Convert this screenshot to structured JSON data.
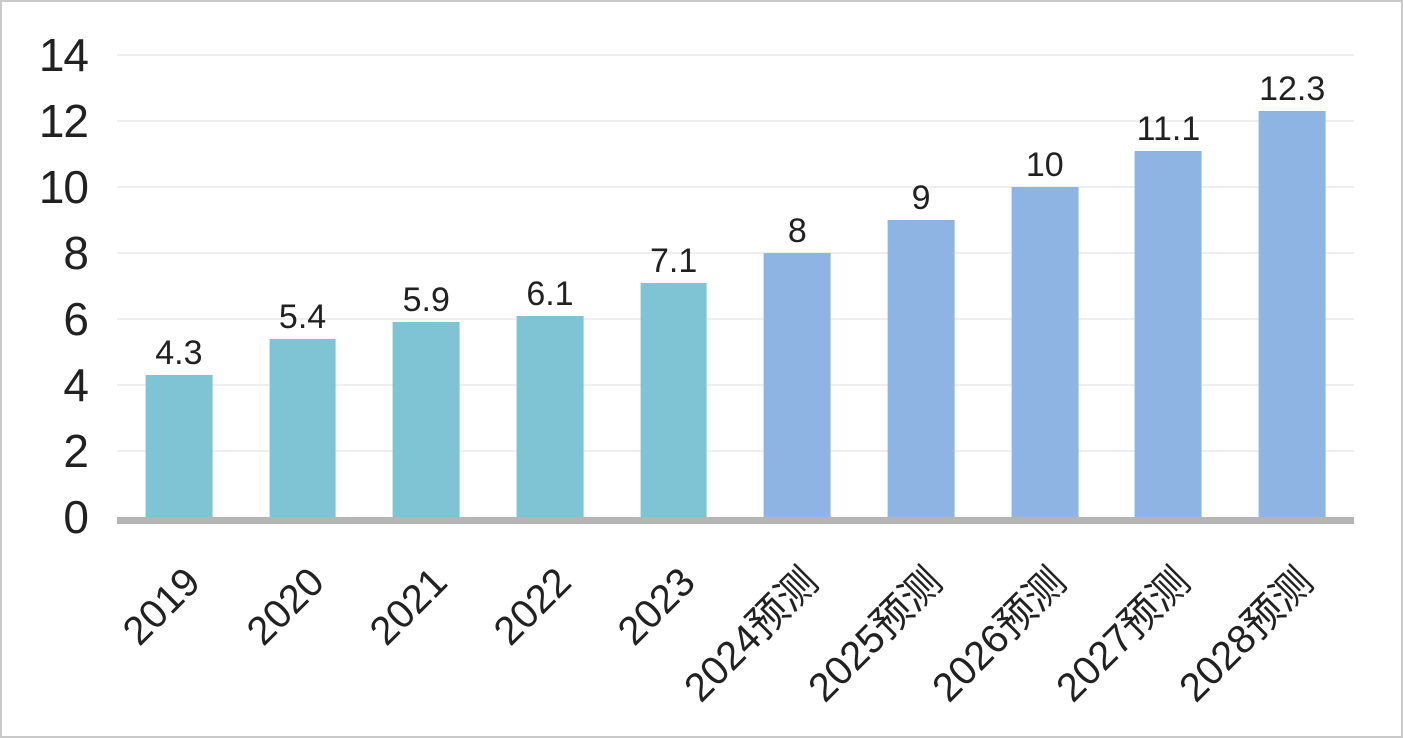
{
  "chart_data": {
    "type": "bar",
    "title": "",
    "xlabel": "",
    "ylabel": "",
    "categories": [
      "2019",
      "2020",
      "2021",
      "2022",
      "2023",
      "2024预测",
      "2025预测",
      "2026预测",
      "2027预测",
      "2028预测"
    ],
    "values": [
      4.3,
      5.4,
      5.9,
      6.1,
      7.1,
      8,
      9,
      10,
      11.1,
      12.3
    ],
    "data_labels": [
      "4.3",
      "5.4",
      "5.9",
      "6.1",
      "7.1",
      "8",
      "9",
      "10",
      "11.1",
      "12.3"
    ],
    "bar_styles": [
      "historical",
      "historical",
      "historical",
      "historical",
      "historical",
      "forecast",
      "forecast",
      "forecast",
      "forecast",
      "forecast"
    ],
    "ylim": [
      0,
      14
    ],
    "yticks": [
      "0",
      "2",
      "4",
      "6",
      "8",
      "10",
      "12",
      "14"
    ],
    "grid": true,
    "legend": "none",
    "colors": {
      "historical_bar": "#7EC4D4",
      "forecast_bar": "#8DB4E2",
      "gridline": "#EFEFEF",
      "axis_line": "#B5B5B5",
      "text": "#212121",
      "background": "#FFFFFF",
      "frame_border": "#C9C9C9"
    }
  }
}
